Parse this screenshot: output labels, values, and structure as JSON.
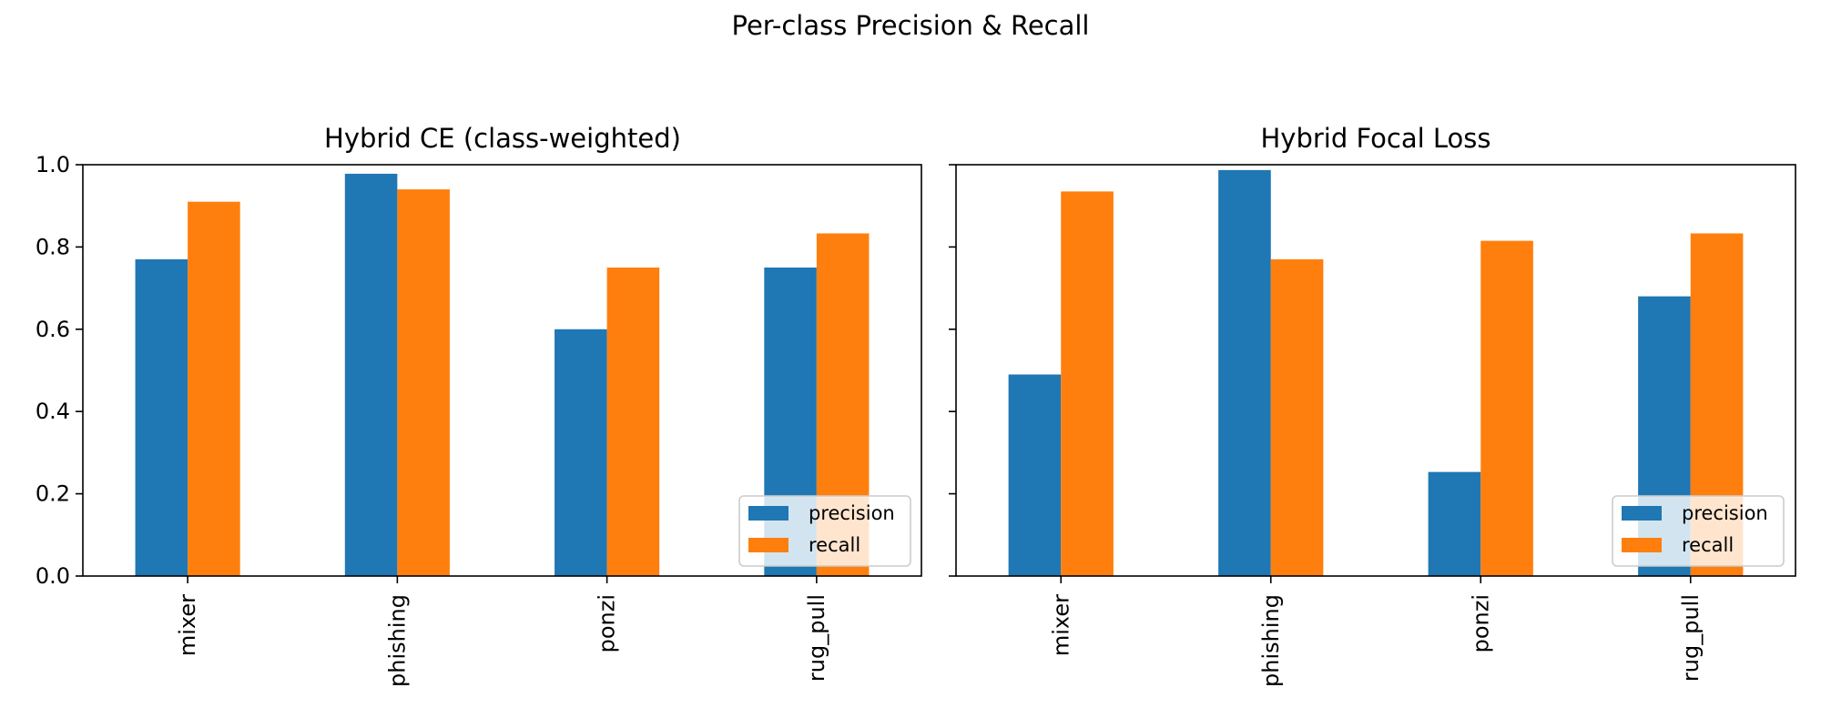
{
  "suptitle": "Per-class Precision & Recall",
  "colors": {
    "precision": "#1f77b4",
    "recall": "#ff7f0e"
  },
  "chart_data": [
    {
      "type": "bar",
      "title": "Hybrid CE (class-weighted)",
      "categories": [
        "mixer",
        "phishing",
        "ponzi",
        "rug_pull"
      ],
      "series": [
        {
          "name": "precision",
          "values": [
            0.77,
            0.978,
            0.6,
            0.75
          ]
        },
        {
          "name": "recall",
          "values": [
            0.91,
            0.94,
            0.75,
            0.833
          ]
        }
      ],
      "xlabel": "",
      "ylabel": "",
      "ylim": [
        0,
        1.0
      ],
      "yticks": [
        "0.0",
        "0.2",
        "0.4",
        "0.6",
        "0.8",
        "1.0"
      ],
      "legend": "lower-right"
    },
    {
      "type": "bar",
      "title": "Hybrid Focal Loss",
      "categories": [
        "mixer",
        "phishing",
        "ponzi",
        "rug_pull"
      ],
      "series": [
        {
          "name": "precision",
          "values": [
            0.49,
            0.987,
            0.253,
            0.68
          ]
        },
        {
          "name": "recall",
          "values": [
            0.935,
            0.77,
            0.815,
            0.833
          ]
        }
      ],
      "xlabel": "",
      "ylabel": "",
      "ylim": [
        0,
        1.0
      ],
      "yticks": [
        "0.0",
        "0.2",
        "0.4",
        "0.6",
        "0.8",
        "1.0"
      ],
      "legend": "lower-right"
    }
  ]
}
